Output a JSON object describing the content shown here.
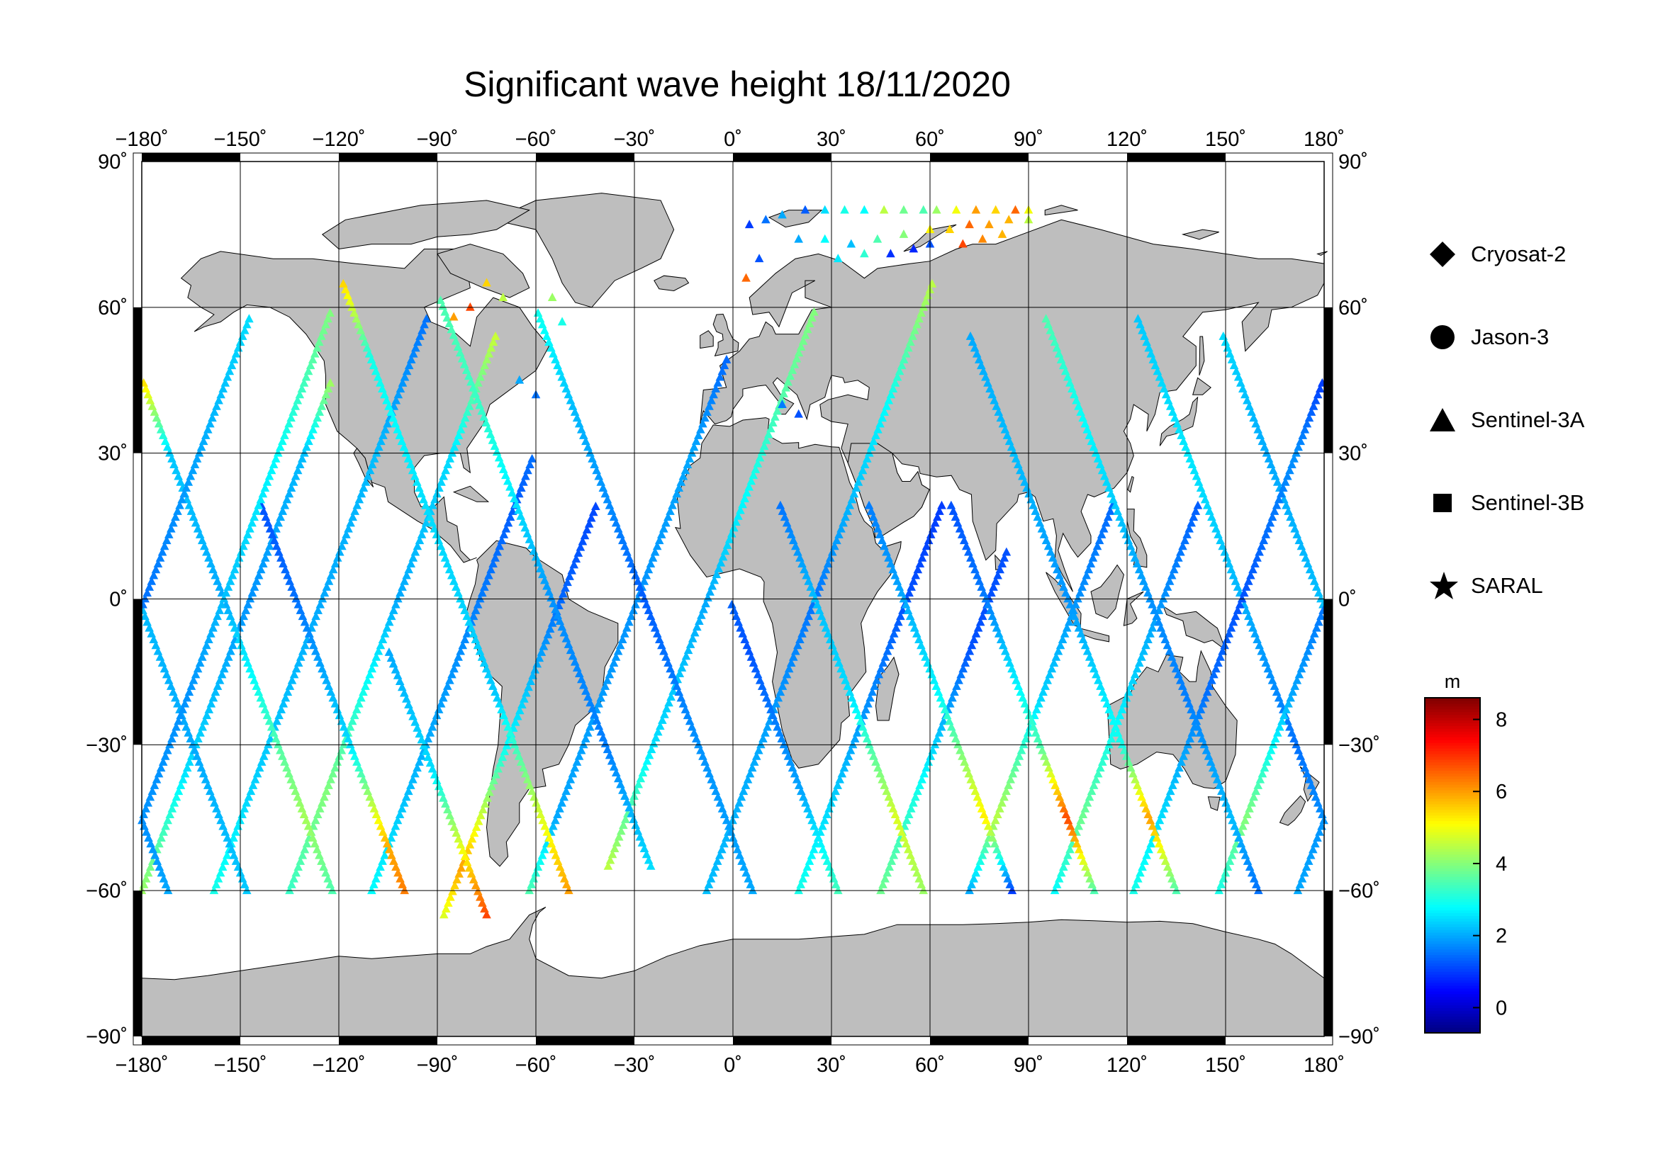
{
  "title": "Significant wave height 18/11/2020",
  "map": {
    "projection": "equirectangular",
    "lon_range": [
      -180,
      180
    ],
    "lat_range": [
      -90,
      90
    ],
    "lon_ticks": [
      -180,
      -150,
      -120,
      -90,
      -60,
      -30,
      0,
      30,
      60,
      90,
      120,
      150,
      180
    ],
    "lat_ticks": [
      -90,
      -60,
      -30,
      0,
      30,
      60,
      90
    ],
    "lon_tick_labels": [
      "−180˚",
      "−150˚",
      "−120˚",
      "−90˚",
      "−60˚",
      "−30˚",
      "0˚",
      "30˚",
      "60˚",
      "90˚",
      "120˚",
      "150˚",
      "180˚"
    ],
    "lat_tick_labels": [
      "−90˚",
      "−60˚",
      "−30˚",
      "0˚",
      "30˚",
      "60˚",
      "90˚"
    ],
    "grid": true,
    "land_color": "#bebebe",
    "ocean_color": "#ffffff"
  },
  "legend": {
    "placement": "right",
    "items": [
      {
        "label": "Cryosat-2",
        "symbol": "diamond-icon"
      },
      {
        "label": "Jason-3",
        "symbol": "circle-icon"
      },
      {
        "label": "Sentinel-3A",
        "symbol": "triangle-icon"
      },
      {
        "label": "Sentinel-3B",
        "symbol": "square-icon"
      },
      {
        "label": "SARAL",
        "symbol": "star-icon"
      }
    ]
  },
  "colorbar": {
    "unit": "m",
    "min": -0.7,
    "max": 8.6,
    "ticks": [
      0,
      2,
      4,
      6,
      8
    ],
    "tick_labels": [
      "0",
      "2",
      "4",
      "6",
      "8"
    ],
    "colormap": "jet"
  },
  "chart_data": {
    "type": "scatter",
    "title": "Significant wave height 18/11/2020",
    "xlabel": "",
    "ylabel": "",
    "xlim": [
      -180,
      180
    ],
    "ylim": [
      -90,
      90
    ],
    "tracks": [
      {
        "lon0": -180,
        "dir": 1,
        "waves": [
          [
            -60,
            4.2
          ],
          [
            -35,
            2.5
          ],
          [
            0,
            1.8
          ],
          [
            30,
            2.2
          ],
          [
            45,
            4.3
          ]
        ]
      },
      {
        "lon0": -172,
        "dir": -1,
        "waves": [
          [
            -60,
            2.0
          ],
          [
            -30,
            1.5
          ],
          [
            0,
            2.1
          ],
          [
            30,
            2.6
          ],
          [
            58,
            2.3
          ]
        ]
      },
      {
        "lon0": -158,
        "dir": 1,
        "waves": [
          [
            -60,
            3.0
          ],
          [
            -40,
            2.4
          ],
          [
            0,
            2.0
          ],
          [
            30,
            2.2
          ],
          [
            58,
            1.5
          ]
        ]
      },
      {
        "lon0": -148,
        "dir": -1,
        "waves": [
          [
            -60,
            2.3
          ],
          [
            -30,
            2.0
          ],
          [
            0,
            2.2
          ],
          [
            30,
            2.0
          ],
          [
            55,
            2.5
          ]
        ]
      },
      {
        "lon0": -135,
        "dir": 1,
        "waves": [
          [
            -60,
            3.3
          ],
          [
            -40,
            4.0
          ],
          [
            0,
            2.0
          ],
          [
            30,
            2.5
          ],
          [
            55,
            4.7
          ]
        ]
      },
      {
        "lon0": -122,
        "dir": -1,
        "waves": [
          [
            -60,
            3.5
          ],
          [
            -45,
            4.3
          ],
          [
            0,
            2.0
          ],
          [
            30,
            2.3
          ],
          [
            45,
            5.5
          ]
        ]
      },
      {
        "lon0": -110,
        "dir": 1,
        "waves": [
          [
            -60,
            2.8
          ],
          [
            -40,
            2.2
          ],
          [
            0,
            1.6
          ],
          [
            20,
            1.3
          ],
          [
            30,
            1.5
          ]
        ]
      },
      {
        "lon0": -100,
        "dir": -1,
        "waves": [
          [
            -60,
            6.3
          ],
          [
            -50,
            5.8
          ],
          [
            -30,
            2.5
          ],
          [
            0,
            1.5
          ],
          [
            20,
            1.2
          ]
        ]
      },
      {
        "lon0": -88,
        "dir": 1,
        "waves": [
          [
            -65,
            4.8
          ],
          [
            -55,
            6.0
          ],
          [
            -30,
            2.8
          ],
          [
            0,
            1.4
          ],
          [
            20,
            1.1
          ]
        ]
      },
      {
        "lon0": -75,
        "dir": -1,
        "waves": [
          [
            -65,
            6.8
          ],
          [
            -55,
            5.5
          ],
          [
            -35,
            2.5
          ],
          [
            -10,
            2.0
          ]
        ]
      },
      {
        "lon0": -62,
        "dir": 1,
        "waves": [
          [
            -60,
            3.5
          ],
          [
            -45,
            2.0
          ],
          [
            0,
            1.8
          ],
          [
            30,
            2.0
          ],
          [
            50,
            1.4
          ]
        ]
      },
      {
        "lon0": -50,
        "dir": -1,
        "waves": [
          [
            -60,
            6.0
          ],
          [
            -45,
            4.8
          ],
          [
            -20,
            2.3
          ],
          [
            20,
            2.5
          ],
          [
            50,
            3.0
          ],
          [
            65,
            5.5
          ]
        ]
      },
      {
        "lon0": -38,
        "dir": 1,
        "waves": [
          [
            -55,
            4.5
          ],
          [
            -30,
            2.5
          ],
          [
            0,
            2.0
          ],
          [
            40,
            3.5
          ],
          [
            60,
            4.0
          ]
        ]
      },
      {
        "lon0": -25,
        "dir": -1,
        "waves": [
          [
            -55,
            2.5
          ],
          [
            -30,
            1.6
          ],
          [
            0,
            1.8
          ],
          [
            40,
            3.3
          ],
          [
            62,
            3.5
          ]
        ]
      },
      {
        "lon0": -8,
        "dir": 1,
        "waves": [
          [
            -60,
            2.2
          ],
          [
            -30,
            2.0
          ],
          [
            0,
            1.5
          ],
          [
            40,
            2.8
          ],
          [
            65,
            4.5
          ]
        ]
      },
      {
        "lon0": 6,
        "dir": -1,
        "waves": [
          [
            -60,
            2.0
          ],
          [
            -30,
            1.8
          ],
          [
            0,
            1.3
          ],
          [
            40,
            2.2
          ],
          [
            60,
            3.0
          ]
        ]
      },
      {
        "lon0": 20,
        "dir": 1,
        "waves": [
          [
            -60,
            3.0
          ],
          [
            -30,
            2.0
          ],
          [
            0,
            1.2
          ],
          [
            20,
            1.0
          ]
        ]
      },
      {
        "lon0": 32,
        "dir": -1,
        "waves": [
          [
            -60,
            3.4
          ],
          [
            -40,
            2.0
          ],
          [
            -10,
            1.2
          ],
          [
            0,
            1.4
          ]
        ]
      },
      {
        "lon0": 45,
        "dir": 1,
        "waves": [
          [
            -60,
            3.8
          ],
          [
            -40,
            3.0
          ],
          [
            -10,
            1.2
          ],
          [
            10,
            1.2
          ]
        ]
      },
      {
        "lon0": 58,
        "dir": -1,
        "waves": [
          [
            -60,
            4.2
          ],
          [
            -45,
            4.8
          ],
          [
            -20,
            2.5
          ],
          [
            0,
            2.2
          ],
          [
            20,
            1.5
          ]
        ]
      },
      {
        "lon0": 72,
        "dir": 1,
        "waves": [
          [
            -60,
            2.0
          ],
          [
            -45,
            4.5
          ],
          [
            -20,
            2.4
          ],
          [
            0,
            1.8
          ],
          [
            20,
            1.4
          ]
        ]
      },
      {
        "lon0": 85,
        "dir": -1,
        "waves": [
          [
            -60,
            1.0
          ],
          [
            -45,
            5.3
          ],
          [
            -20,
            2.8
          ],
          [
            0,
            2.0
          ],
          [
            20,
            1.6
          ]
        ]
      },
      {
        "lon0": 98,
        "dir": 1,
        "waves": [
          [
            -60,
            2.8
          ],
          [
            -45,
            3.8
          ],
          [
            -20,
            2.5
          ],
          [
            0,
            1.8
          ],
          [
            20,
            1.3
          ]
        ]
      },
      {
        "lon0": 110,
        "dir": -1,
        "waves": [
          [
            -60,
            3.5
          ],
          [
            -45,
            6.8
          ],
          [
            -30,
            3.5
          ],
          [
            0,
            1.6
          ],
          [
            20,
            1.2
          ]
        ]
      },
      {
        "lon0": 122,
        "dir": 1,
        "waves": [
          [
            -60,
            3.0
          ],
          [
            -45,
            2.5
          ],
          [
            -20,
            1.5
          ],
          [
            0,
            1.2
          ],
          [
            30,
            1.8
          ],
          [
            45,
            1.0
          ]
        ]
      },
      {
        "lon0": 135,
        "dir": -1,
        "waves": [
          [
            -60,
            3.5
          ],
          [
            -45,
            6.0
          ],
          [
            -30,
            3.0
          ],
          [
            0,
            1.8
          ],
          [
            30,
            2.2
          ],
          [
            55,
            2.0
          ]
        ]
      },
      {
        "lon0": 148,
        "dir": 1,
        "waves": [
          [
            -60,
            3.0
          ],
          [
            -45,
            4.0
          ],
          [
            -20,
            2.0
          ],
          [
            0,
            1.5
          ],
          [
            30,
            2.0
          ],
          [
            58,
            2.5
          ]
        ]
      },
      {
        "lon0": 160,
        "dir": -1,
        "waves": [
          [
            -60,
            1.5
          ],
          [
            -45,
            2.2
          ],
          [
            -20,
            1.6
          ],
          [
            0,
            1.8
          ],
          [
            30,
            2.6
          ],
          [
            58,
            3.5
          ]
        ]
      },
      {
        "lon0": 172,
        "dir": 1,
        "waves": [
          [
            -60,
            2.0
          ],
          [
            -45,
            1.8
          ],
          [
            -20,
            1.8
          ],
          [
            0,
            2.2
          ],
          [
            30,
            2.8
          ],
          [
            60,
            4.0
          ]
        ]
      }
    ],
    "arctic_points": [
      [
        5,
        77,
        1.0
      ],
      [
        10,
        78,
        1.5
      ],
      [
        15,
        79,
        2.0
      ],
      [
        22,
        80,
        1.3
      ],
      [
        28,
        80,
        2.5
      ],
      [
        34,
        80,
        3.0
      ],
      [
        40,
        80,
        2.8
      ],
      [
        46,
        80,
        4.5
      ],
      [
        52,
        80,
        3.8
      ],
      [
        58,
        80,
        3.5
      ],
      [
        62,
        80,
        4.2
      ],
      [
        68,
        80,
        5.0
      ],
      [
        74,
        80,
        6.0
      ],
      [
        80,
        80,
        5.5
      ],
      [
        86,
        80,
        6.5
      ],
      [
        90,
        80,
        5.0
      ],
      [
        20,
        74,
        2.0
      ],
      [
        28,
        74,
        2.8
      ],
      [
        36,
        73,
        2.2
      ],
      [
        44,
        74,
        3.5
      ],
      [
        52,
        75,
        4.0
      ],
      [
        60,
        76,
        5.2
      ],
      [
        66,
        76,
        5.5
      ],
      [
        72,
        77,
        6.5
      ],
      [
        78,
        77,
        6.0
      ],
      [
        84,
        78,
        5.8
      ],
      [
        90,
        78,
        4.5
      ],
      [
        32,
        70,
        2.6
      ],
      [
        40,
        71,
        3.2
      ],
      [
        70,
        73,
        6.8
      ],
      [
        76,
        74,
        6.2
      ],
      [
        82,
        75,
        5.8
      ],
      [
        60,
        73,
        1.2
      ],
      [
        55,
        72,
        0.8
      ],
      [
        48,
        71,
        0.9
      ]
    ],
    "notes_points": [
      [
        -70,
        62,
        4.5
      ],
      [
        -75,
        65,
        5.5
      ],
      [
        -80,
        60,
        6.8
      ],
      [
        -85,
        58,
        6.0
      ],
      [
        -55,
        62,
        4.2
      ],
      [
        -52,
        57,
        3.0
      ],
      [
        4,
        66,
        6.5
      ],
      [
        8,
        70,
        1.2
      ],
      [
        -65,
        45,
        2.0
      ],
      [
        -60,
        42,
        1.5
      ],
      [
        20,
        38,
        1.2
      ],
      [
        15,
        40,
        1.6
      ]
    ]
  }
}
